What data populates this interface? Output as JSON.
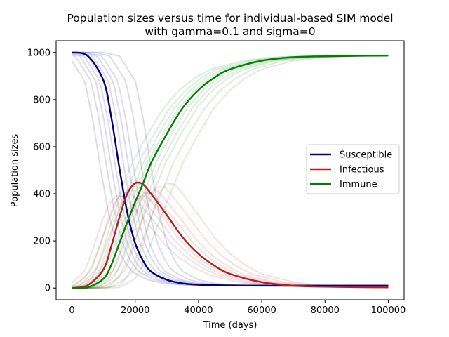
{
  "chart_data": {
    "type": "line",
    "title_line1": "Population sizes versus time for individual-based SIM model",
    "title_line2": "with gamma=0.1 and sigma=0",
    "xlabel": "Time (days)",
    "ylabel": "Population sizes",
    "xlim": [
      -5000,
      105000
    ],
    "ylim": [
      -50,
      1050
    ],
    "xticks": [
      0,
      20000,
      40000,
      60000,
      80000,
      100000
    ],
    "xtick_labels": [
      "0",
      "20000",
      "40000",
      "60000",
      "80000",
      "100000"
    ],
    "yticks": [
      0,
      200,
      400,
      600,
      800,
      1000
    ],
    "ytick_labels": [
      "0",
      "200",
      "400",
      "600",
      "800",
      "1000"
    ],
    "legend_position": "center-right",
    "grid": false,
    "x": [
      0,
      5000,
      10000,
      12500,
      15000,
      17500,
      20000,
      22500,
      25000,
      30000,
      35000,
      40000,
      45000,
      50000,
      60000,
      70000,
      80000,
      90000,
      100000
    ],
    "series": [
      {
        "name": "Susceptible",
        "color": "#000080",
        "values": [
          1000,
          985,
          880,
          720,
          510,
          320,
          190,
          115,
          70,
          35,
          20,
          14,
          12,
          11,
          10,
          10,
          10,
          10,
          10
        ]
      },
      {
        "name": "Infectious",
        "color": "#b22222",
        "values": [
          0,
          12,
          80,
          180,
          300,
          400,
          445,
          440,
          400,
          310,
          215,
          145,
          95,
          60,
          25,
          10,
          6,
          4,
          3
        ]
      },
      {
        "name": "Immune",
        "color": "#008000",
        "values": [
          0,
          3,
          40,
          100,
          190,
          280,
          365,
          445,
          530,
          655,
          765,
          841,
          893,
          929,
          965,
          980,
          984,
          986,
          987
        ]
      }
    ],
    "replicate_shifts": [
      -6000,
      -4000,
      -2500,
      -1200,
      0,
      1500,
      3000,
      4500,
      7000,
      10000
    ]
  }
}
